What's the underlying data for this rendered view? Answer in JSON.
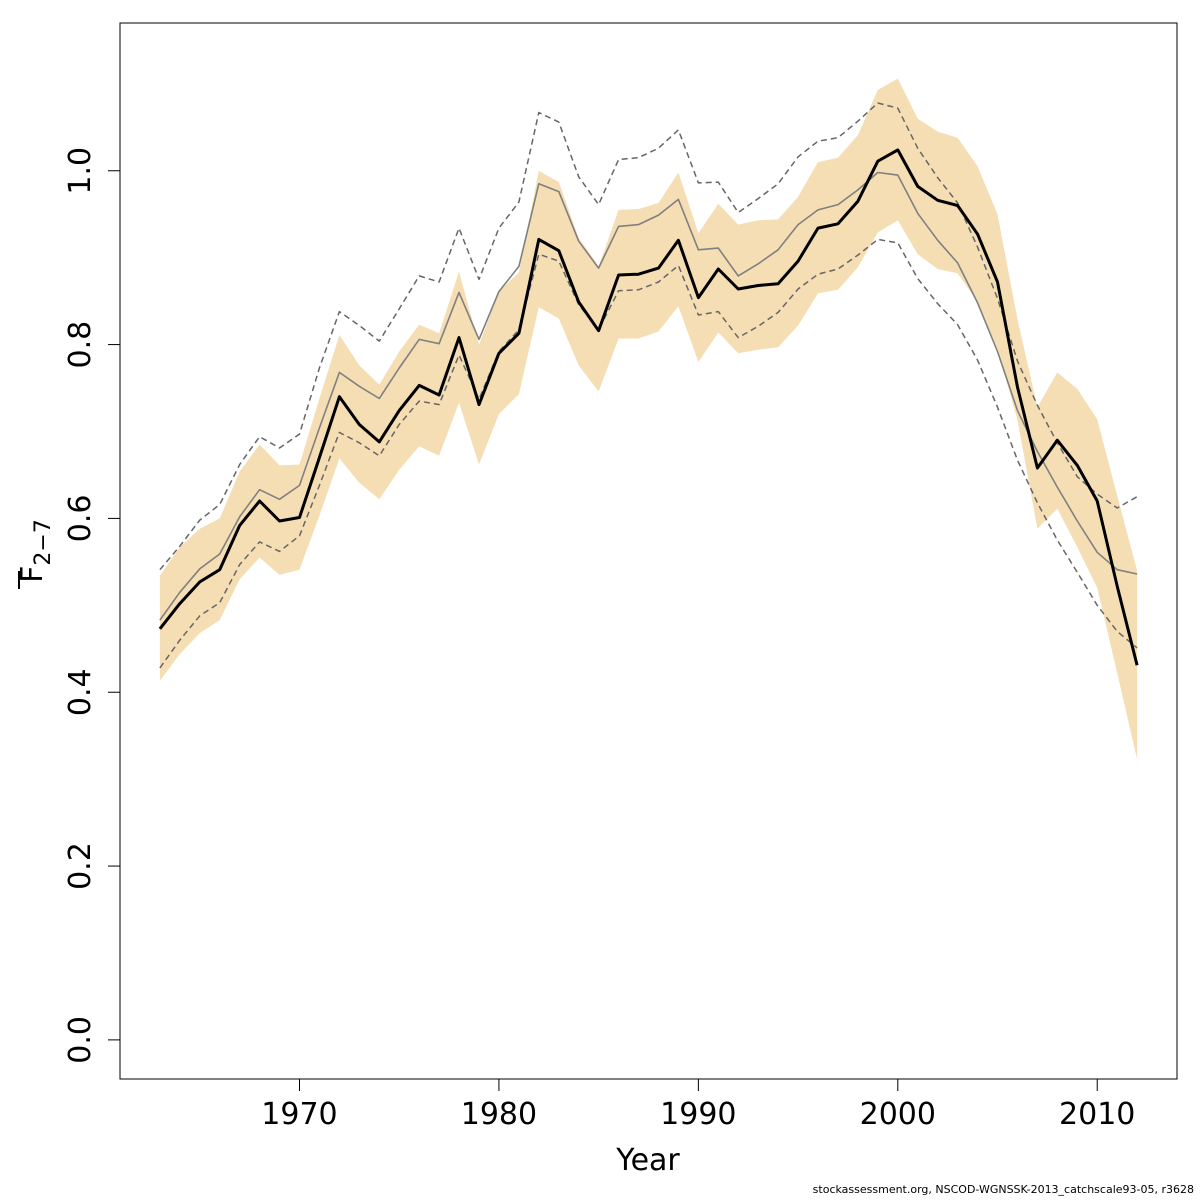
{
  "chart_data": {
    "type": "line",
    "xlabel": "Year",
    "ylabel": "F",
    "ylabel_sub": "2−7",
    "xlim": [
      1961,
      2014
    ],
    "ylim": [
      -0.045,
      1.17
    ],
    "xticks": [
      1970,
      1980,
      1990,
      2000,
      2010
    ],
    "yticks": [
      0.0,
      0.2,
      0.4,
      0.6,
      0.8,
      1.0
    ],
    "ytick_labels": [
      "0.0",
      "0.2",
      "0.4",
      "0.6",
      "0.8",
      "1.0"
    ],
    "grid": false,
    "colors": {
      "band": "#f5deb3",
      "main": "#000000",
      "secondary": "#808080",
      "dashed": "#666666"
    },
    "x": [
      1963,
      1964,
      1965,
      1966,
      1967,
      1968,
      1969,
      1970,
      1971,
      1972,
      1973,
      1974,
      1975,
      1976,
      1977,
      1978,
      1979,
      1980,
      1981,
      1982,
      1983,
      1984,
      1985,
      1986,
      1987,
      1988,
      1989,
      1990,
      1991,
      1992,
      1993,
      1994,
      1995,
      1996,
      1997,
      1998,
      1999,
      2000,
      2001,
      2002,
      2003,
      2004,
      2005,
      2006,
      2007,
      2008,
      2009,
      2010,
      2011,
      2012
    ],
    "band_lower": [
      0.413,
      0.444,
      0.468,
      0.483,
      0.53,
      0.555,
      0.535,
      0.541,
      0.603,
      0.669,
      0.641,
      0.622,
      0.656,
      0.683,
      0.672,
      0.733,
      0.662,
      0.72,
      0.743,
      0.843,
      0.83,
      0.776,
      0.746,
      0.807,
      0.807,
      0.815,
      0.844,
      0.78,
      0.814,
      0.79,
      0.794,
      0.797,
      0.822,
      0.859,
      0.863,
      0.889,
      0.929,
      0.943,
      0.904,
      0.887,
      0.882,
      0.849,
      0.795,
      0.713,
      0.588,
      0.611,
      0.567,
      0.52,
      0.422,
      0.323
    ],
    "band_upper": [
      0.534,
      0.567,
      0.588,
      0.6,
      0.654,
      0.685,
      0.661,
      0.662,
      0.738,
      0.811,
      0.776,
      0.754,
      0.792,
      0.823,
      0.813,
      0.884,
      0.8,
      0.861,
      0.883,
      1.0,
      0.987,
      0.923,
      0.89,
      0.955,
      0.956,
      0.963,
      0.998,
      0.928,
      0.962,
      0.938,
      0.943,
      0.944,
      0.97,
      1.01,
      1.015,
      1.041,
      1.093,
      1.106,
      1.06,
      1.045,
      1.038,
      1.005,
      0.95,
      0.829,
      0.728,
      0.768,
      0.749,
      0.714,
      0.626,
      0.54
    ],
    "series": [
      {
        "role": "estimate",
        "style": "solid-bold",
        "values": [
          0.473,
          0.502,
          0.527,
          0.541,
          0.592,
          0.62,
          0.597,
          0.601,
          0.67,
          0.74,
          0.708,
          0.688,
          0.724,
          0.753,
          0.742,
          0.808,
          0.731,
          0.79,
          0.813,
          0.921,
          0.908,
          0.849,
          0.816,
          0.88,
          0.881,
          0.888,
          0.92,
          0.854,
          0.887,
          0.864,
          0.868,
          0.87,
          0.896,
          0.934,
          0.939,
          0.965,
          1.011,
          1.024,
          0.982,
          0.966,
          0.96,
          0.927,
          0.872,
          0.751,
          0.658,
          0.69,
          0.661,
          0.62,
          0.522,
          0.431
        ]
      },
      {
        "role": "comparison",
        "style": "solid-thin",
        "values": [
          0.483,
          0.515,
          0.542,
          0.559,
          0.602,
          0.633,
          0.622,
          0.638,
          0.704,
          0.768,
          0.752,
          0.738,
          0.773,
          0.806,
          0.801,
          0.86,
          0.806,
          0.861,
          0.89,
          0.985,
          0.976,
          0.919,
          0.888,
          0.936,
          0.938,
          0.949,
          0.967,
          0.909,
          0.911,
          0.879,
          0.893,
          0.909,
          0.938,
          0.955,
          0.961,
          0.978,
          0.998,
          0.995,
          0.951,
          0.92,
          0.894,
          0.848,
          0.792,
          0.724,
          0.677,
          0.636,
          0.597,
          0.561,
          0.541,
          0.536
        ]
      },
      {
        "role": "comparison-upper",
        "style": "dashed",
        "values": [
          0.541,
          0.568,
          0.598,
          0.616,
          0.662,
          0.694,
          0.681,
          0.697,
          0.773,
          0.838,
          0.822,
          0.804,
          0.841,
          0.879,
          0.872,
          0.934,
          0.875,
          0.934,
          0.964,
          1.067,
          1.056,
          0.993,
          0.961,
          1.013,
          1.015,
          1.026,
          1.047,
          0.986,
          0.987,
          0.952,
          0.968,
          0.985,
          1.016,
          1.034,
          1.038,
          1.057,
          1.078,
          1.072,
          1.026,
          0.992,
          0.963,
          0.912,
          0.853,
          0.781,
          0.73,
          0.687,
          0.648,
          0.628,
          0.612,
          0.625
        ]
      },
      {
        "role": "comparison-lower",
        "style": "dashed",
        "values": [
          0.428,
          0.46,
          0.488,
          0.503,
          0.547,
          0.573,
          0.562,
          0.58,
          0.638,
          0.699,
          0.687,
          0.672,
          0.708,
          0.735,
          0.731,
          0.788,
          0.737,
          0.792,
          0.817,
          0.904,
          0.896,
          0.846,
          0.817,
          0.862,
          0.863,
          0.872,
          0.891,
          0.834,
          0.838,
          0.808,
          0.821,
          0.837,
          0.864,
          0.881,
          0.887,
          0.903,
          0.921,
          0.917,
          0.876,
          0.847,
          0.823,
          0.782,
          0.728,
          0.667,
          0.618,
          0.575,
          0.538,
          0.5,
          0.47,
          0.451
        ]
      }
    ]
  },
  "footer": {
    "note": "stockassessment.org, NSCOD-WGNSSK-2013_catchscale93-05, r3628"
  }
}
